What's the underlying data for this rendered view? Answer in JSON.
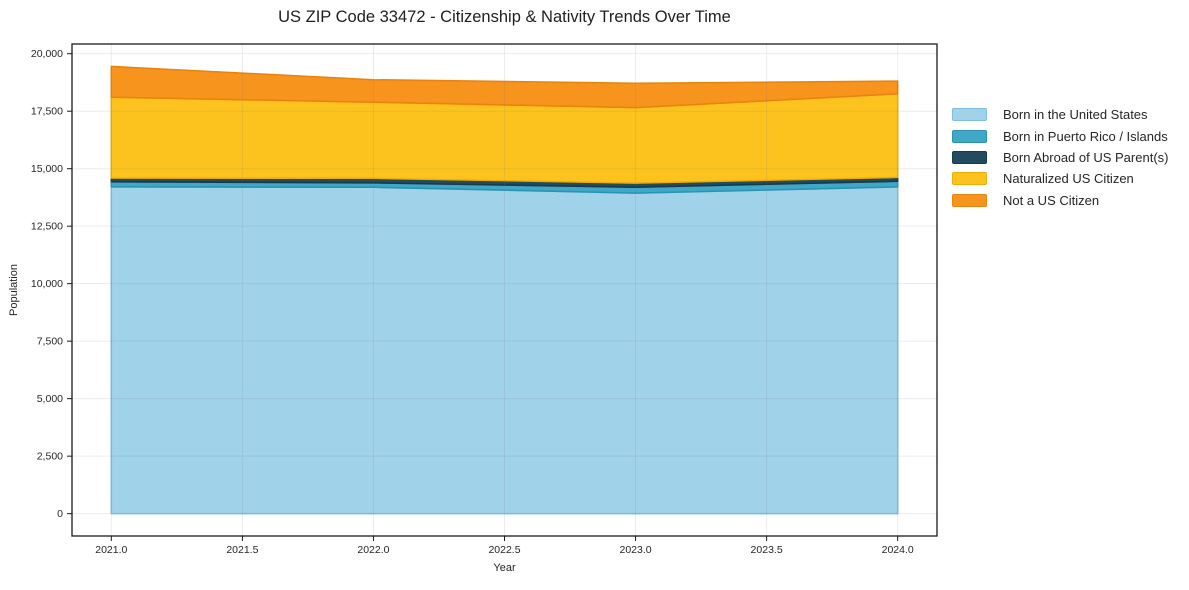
{
  "chart_data": {
    "type": "area",
    "stacked": true,
    "title": "US ZIP Code 33472 - Citizenship & Nativity Trends Over Time",
    "xlabel": "Year",
    "ylabel": "Population",
    "x": [
      2021,
      2022,
      2023,
      2024
    ],
    "series": [
      {
        "name": "Born in the United States",
        "color": "#a0d2e9",
        "edge": "#7fbede",
        "values": [
          14210,
          14190,
          13940,
          14210
        ]
      },
      {
        "name": "Born in Puerto Rico / Islands",
        "color": "#3fa8c6",
        "edge": "#2b92b0",
        "values": [
          220,
          190,
          250,
          240
        ]
      },
      {
        "name": "Born Abroad of US Parent(s)",
        "color": "#234a5e",
        "edge": "#16394b",
        "values": [
          160,
          200,
          185,
          170
        ]
      },
      {
        "name": "Naturalized US Citizen",
        "color": "#fcc31e",
        "edge": "#eeae08",
        "values": [
          3520,
          3310,
          3280,
          3630
        ]
      },
      {
        "name": "Not a US Citizen",
        "color": "#f7941e",
        "edge": "#e8830e",
        "values": [
          1340,
          980,
          1060,
          560
        ]
      }
    ],
    "x_ticks": {
      "values": [
        2021,
        2021.5,
        2022,
        2022.5,
        2023,
        2023.5,
        2024
      ],
      "labels": [
        "2021.0",
        "2021.5",
        "2022.0",
        "2022.5",
        "2023.0",
        "2023.5",
        "2024.0"
      ]
    },
    "y_ticks": {
      "values": [
        0,
        2500,
        5000,
        7500,
        10000,
        12500,
        15000,
        17500,
        20000
      ],
      "labels": [
        "0",
        "2,500",
        "5,000",
        "7,500",
        "10,000",
        "12,500",
        "15,000",
        "17,500",
        "20,000"
      ]
    },
    "xlim": [
      2020.85,
      2024.15
    ],
    "ylim": [
      -972,
      20422
    ],
    "grid": true,
    "legend_position": "right"
  },
  "colors": {
    "background": "#ffffff",
    "plot_background": "#ffffff",
    "grid": "#e9e9ee",
    "grid_over_area": "rgba(120,120,140,0.14)",
    "spine": "#1a1a1a",
    "text": "#262626"
  }
}
